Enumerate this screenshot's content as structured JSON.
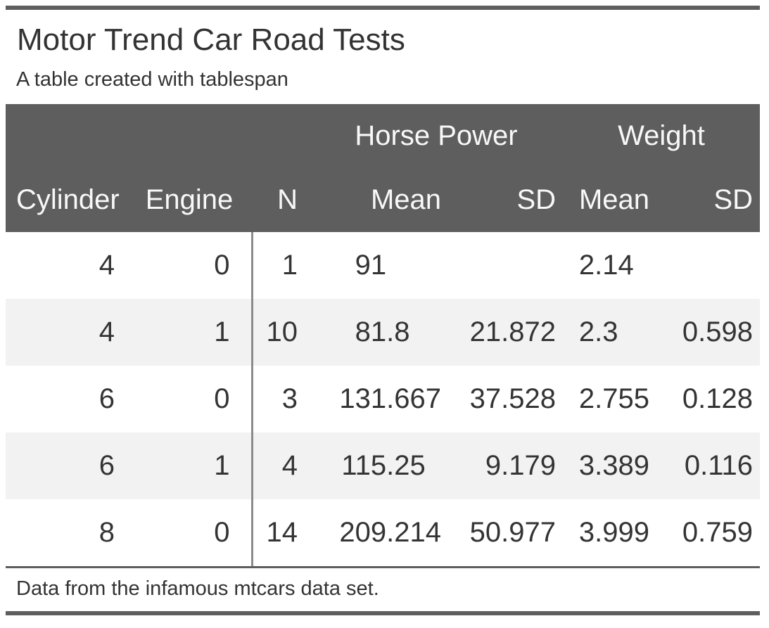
{
  "page": {
    "title": "Motor Trend Car Road Tests",
    "subtitle": "A table created with tablespan",
    "footnote": "Data from the infamous mtcars data set."
  },
  "colors": {
    "header_bg": "#5e5e5e",
    "header_text": "#f8f8f8",
    "body_text": "#343434",
    "row_stripe": "#f2f2f2",
    "rule": "#5e5e5e",
    "column_divider": "#8b8b8b"
  },
  "chart_data": {
    "type": "table",
    "title": "Motor Trend Car Road Tests",
    "subtitle": "A table created with tablespan",
    "footnote": "Data from the infamous mtcars data set.",
    "spanners": [
      {
        "label": "Horse Power",
        "columns": [
          "Mean",
          "SD"
        ]
      },
      {
        "label": "Weight",
        "columns": [
          "Mean",
          "SD"
        ]
      }
    ],
    "columns": [
      "Cylinder",
      "Engine",
      "N",
      "Mean",
      "SD",
      "Mean",
      "SD"
    ],
    "rows": [
      {
        "cylinder": "4",
        "engine": "0",
        "n": "1",
        "hp_mean": "91",
        "hp_sd": "",
        "wt_mean": "2.14",
        "wt_sd": ""
      },
      {
        "cylinder": "4",
        "engine": "1",
        "n": "10",
        "hp_mean": "81.8",
        "hp_sd": "21.872",
        "wt_mean": "2.3",
        "wt_sd": "0.598"
      },
      {
        "cylinder": "6",
        "engine": "0",
        "n": "3",
        "hp_mean": "131.667",
        "hp_sd": "37.528",
        "wt_mean": "2.755",
        "wt_sd": "0.128"
      },
      {
        "cylinder": "6",
        "engine": "1",
        "n": "4",
        "hp_mean": "115.25",
        "hp_sd": "9.179",
        "wt_mean": "3.389",
        "wt_sd": "0.116"
      },
      {
        "cylinder": "8",
        "engine": "0",
        "n": "14",
        "hp_mean": "209.214",
        "hp_sd": "50.977",
        "wt_mean": "3.999",
        "wt_sd": "0.759"
      }
    ]
  }
}
